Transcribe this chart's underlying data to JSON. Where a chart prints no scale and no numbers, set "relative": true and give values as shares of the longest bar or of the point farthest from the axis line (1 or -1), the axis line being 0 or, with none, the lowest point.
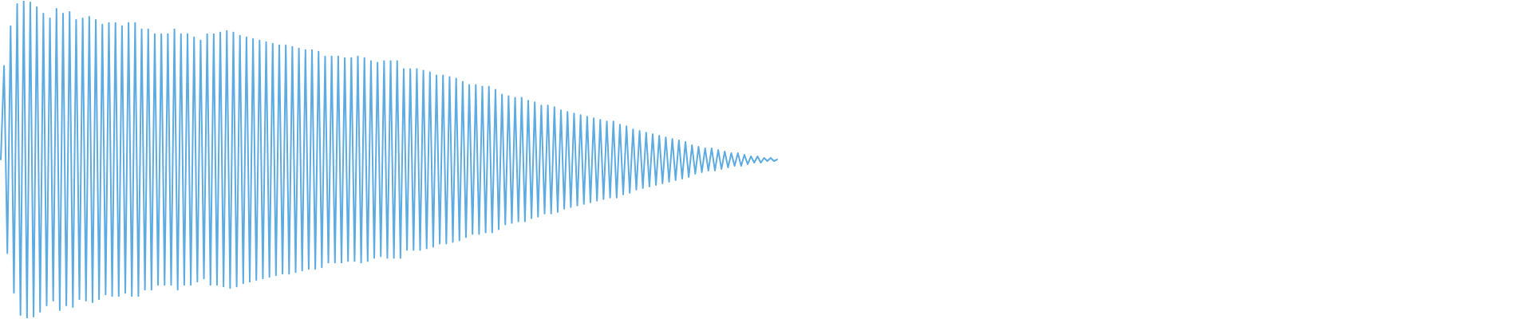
{
  "chart_data": {
    "type": "line",
    "relative": true,
    "color": "#5dabe1",
    "categories": [
      null,
      null,
      null,
      null,
      null,
      null,
      null,
      null,
      null,
      null,
      null,
      null,
      null,
      null,
      null,
      null,
      null,
      null,
      null,
      null,
      null,
      null,
      null,
      null,
      null,
      null,
      null,
      null,
      null,
      null,
      null,
      null,
      null,
      null,
      null,
      null,
      null,
      null,
      null,
      null,
      null,
      null,
      null,
      null,
      null,
      null,
      null,
      null,
      null,
      null,
      null,
      null,
      null,
      null,
      null,
      null,
      null,
      null,
      null,
      null,
      null,
      null,
      null,
      null,
      null,
      null,
      null,
      null,
      null,
      null,
      null,
      null,
      null,
      null,
      null,
      null,
      null,
      null,
      null,
      null,
      null,
      null,
      null,
      null,
      null,
      null,
      null,
      null,
      null,
      null,
      null,
      null,
      null,
      null,
      null,
      null,
      null,
      null,
      null,
      null,
      null,
      null,
      null,
      null,
      null,
      null,
      null,
      null,
      null,
      null,
      null,
      null,
      null,
      null,
      null,
      null,
      null,
      null,
      null,
      null,
      null,
      null,
      null,
      null,
      null,
      null,
      null,
      null,
      null,
      null,
      null,
      null,
      null,
      null,
      null,
      null,
      null,
      null,
      null,
      null,
      null,
      null,
      null,
      null,
      null,
      null,
      null,
      null,
      null,
      null,
      null,
      null,
      null,
      null,
      null,
      null,
      null,
      null,
      null,
      null,
      null,
      null,
      null,
      null,
      null,
      null,
      null,
      null,
      null,
      null,
      null,
      null,
      null,
      null,
      null,
      null,
      null,
      null,
      null,
      null,
      null,
      null,
      null,
      null,
      null,
      null,
      null,
      null,
      null,
      null,
      null,
      null,
      null,
      null,
      null,
      null,
      null,
      null,
      null,
      null,
      null,
      null,
      null,
      null,
      null,
      null,
      null,
      null,
      null,
      null,
      null,
      null,
      null,
      null,
      null,
      null,
      null,
      null,
      null,
      null,
      null,
      null,
      null,
      null,
      null,
      null,
      null,
      null,
      null,
      null,
      null,
      null,
      null,
      null,
      null,
      null,
      null,
      null
    ],
    "values": [
      0.5,
      0.795,
      0.205,
      0.92,
      0.08,
      0.99,
      0.01,
      1,
      0,
      0.995,
      0.005,
      0.98,
      0.02,
      0.96,
      0.04,
      0.945,
      0.055,
      0.975,
      0.025,
      0.96,
      0.04,
      0.965,
      0.035,
      0.94,
      0.06,
      0.945,
      0.055,
      0.95,
      0.05,
      0.94,
      0.06,
      0.925,
      0.075,
      0.93,
      0.07,
      0.93,
      0.07,
      0.92,
      0.08,
      0.93,
      0.07,
      0.93,
      0.07,
      0.91,
      0.09,
      0.91,
      0.09,
      0.895,
      0.105,
      0.895,
      0.105,
      0.895,
      0.105,
      0.91,
      0.09,
      0.895,
      0.105,
      0.895,
      0.105,
      0.885,
      0.115,
      0.875,
      0.125,
      0.895,
      0.105,
      0.895,
      0.105,
      0.9,
      0.1,
      0.905,
      0.095,
      0.9,
      0.1,
      0.89,
      0.11,
      0.885,
      0.115,
      0.88,
      0.12,
      0.875,
      0.125,
      0.87,
      0.13,
      0.865,
      0.135,
      0.86,
      0.14,
      0.86,
      0.14,
      0.855,
      0.145,
      0.85,
      0.15,
      0.845,
      0.155,
      0.845,
      0.155,
      0.84,
      0.16,
      0.825,
      0.175,
      0.825,
      0.175,
      0.825,
      0.175,
      0.82,
      0.18,
      0.82,
      0.18,
      0.825,
      0.175,
      0.82,
      0.18,
      0.81,
      0.19,
      0.805,
      0.195,
      0.81,
      0.19,
      0.81,
      0.19,
      0.81,
      0.19,
      0.785,
      0.215,
      0.785,
      0.215,
      0.785,
      0.215,
      0.78,
      0.22,
      0.775,
      0.225,
      0.765,
      0.235,
      0.765,
      0.235,
      0.76,
      0.24,
      0.755,
      0.245,
      0.745,
      0.255,
      0.735,
      0.265,
      0.735,
      0.265,
      0.73,
      0.27,
      0.73,
      0.27,
      0.72,
      0.28,
      0.705,
      0.295,
      0.7,
      0.3,
      0.695,
      0.305,
      0.695,
      0.305,
      0.685,
      0.315,
      0.68,
      0.32,
      0.67,
      0.33,
      0.67,
      0.33,
      0.665,
      0.335,
      0.655,
      0.345,
      0.65,
      0.35,
      0.645,
      0.355,
      0.64,
      0.36,
      0.635,
      0.365,
      0.63,
      0.37,
      0.625,
      0.375,
      0.62,
      0.38,
      0.62,
      0.38,
      0.61,
      0.39,
      0.605,
      0.395,
      0.595,
      0.405,
      0.59,
      0.41,
      0.585,
      0.415,
      0.58,
      0.42,
      0.575,
      0.425,
      0.57,
      0.43,
      0.565,
      0.435,
      0.56,
      0.44,
      0.555,
      0.445,
      0.545,
      0.455,
      0.54,
      0.46,
      0.535,
      0.465,
      0.535,
      0.465,
      0.53,
      0.47,
      0.525,
      0.475,
      0.52,
      0.48,
      0.52,
      0.48,
      0.515,
      0.485,
      0.51,
      0.49,
      0.51,
      0.49,
      0.505,
      0.495,
      0.505,
      0.495,
      0.5
    ]
  }
}
